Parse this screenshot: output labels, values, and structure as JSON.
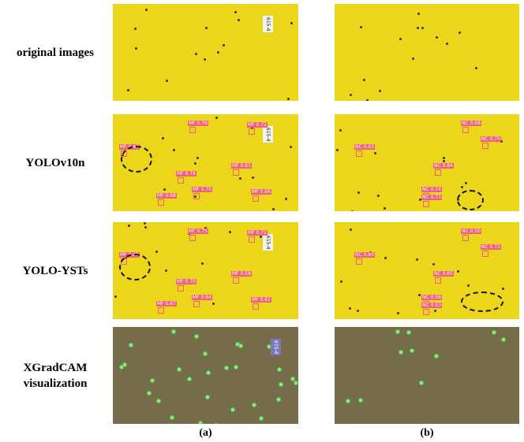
{
  "rows": [
    {
      "label": "original images"
    },
    {
      "label": "YOLOv10n",
      "detections_a": [
        "MF 0.47",
        "MF 0.76",
        "MF 0.74",
        "MF 0.68",
        "MF 0.72",
        "MF 0.61",
        "MF 0.75",
        "MF 0.66"
      ],
      "detections_b": [
        "NC 0.63",
        "NC 0.68",
        "NC 0.70",
        "NC 0.84",
        "NC 0.74",
        "NC 0.73"
      ]
    },
    {
      "label": "YOLO-YSTs",
      "detections_a": [
        "MF 0.49",
        "MF 0.75",
        "MF 0.70",
        "MF 0.67",
        "MF 0.72",
        "MF 0.58",
        "MF 0.64",
        "MF 0.62"
      ],
      "detections_b": [
        "NC 0.60",
        "NC 0.50",
        "NC 0.72",
        "NC 0.65",
        "NC 0.58",
        "NC 0.53"
      ]
    },
    {
      "label": "XGradCAM\nvisualization"
    }
  ],
  "columns": [
    "(a)",
    "(b)"
  ],
  "plate_label": "615-4"
}
